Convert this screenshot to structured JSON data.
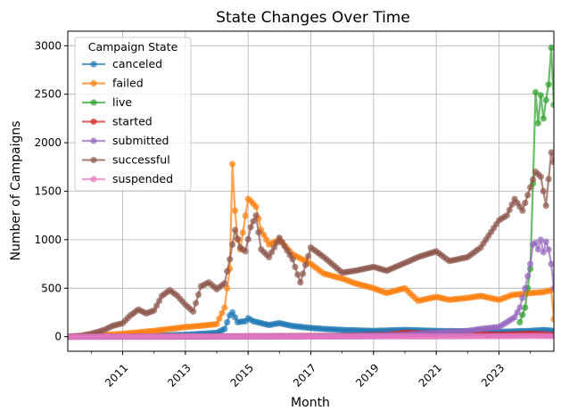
{
  "chart_data": {
    "type": "line",
    "title": "State Changes Over Time",
    "xlabel": "Month",
    "ylabel": "Number of Campaigns",
    "x_range": [
      "2009-04",
      "2024-10"
    ],
    "ylim": [
      -150,
      3150
    ],
    "x_ticks": [
      "2011",
      "2013",
      "2015",
      "2017",
      "2019",
      "2021",
      "2023"
    ],
    "y_ticks": [
      0,
      500,
      1000,
      1500,
      2000,
      2500,
      3000
    ],
    "grid": true,
    "legend": {
      "title": "Campaign State",
      "placement": "top-left"
    },
    "series": [
      {
        "name": "canceled",
        "color": "#1f77b4",
        "points": [
          [
            "2009-04",
            0
          ],
          [
            "2010-01",
            2
          ],
          [
            "2011-01",
            5
          ],
          [
            "2012-01",
            10
          ],
          [
            "2013-01",
            20
          ],
          [
            "2014-01",
            40
          ],
          [
            "2014-04",
            80
          ],
          [
            "2014-06",
            220
          ],
          [
            "2014-07",
            250
          ],
          [
            "2014-08",
            200
          ],
          [
            "2014-09",
            150
          ],
          [
            "2014-12",
            160
          ],
          [
            "2015-01",
            190
          ],
          [
            "2015-03",
            160
          ],
          [
            "2015-06",
            140
          ],
          [
            "2015-09",
            120
          ],
          [
            "2016-01",
            140
          ],
          [
            "2016-06",
            110
          ],
          [
            "2017-01",
            90
          ],
          [
            "2017-06",
            80
          ],
          [
            "2018-01",
            70
          ],
          [
            "2019-01",
            60
          ],
          [
            "2020-01",
            70
          ],
          [
            "2021-01",
            60
          ],
          [
            "2022-01",
            55
          ],
          [
            "2023-01",
            50
          ],
          [
            "2024-01",
            60
          ],
          [
            "2024-06",
            70
          ],
          [
            "2024-10",
            60
          ]
        ]
      },
      {
        "name": "failed",
        "color": "#ff7f0e",
        "points": [
          [
            "2009-04",
            0
          ],
          [
            "2010-01",
            10
          ],
          [
            "2011-01",
            30
          ],
          [
            "2012-01",
            60
          ],
          [
            "2013-01",
            100
          ],
          [
            "2013-06",
            110
          ],
          [
            "2014-01",
            130
          ],
          [
            "2014-04",
            300
          ],
          [
            "2014-06",
            700
          ],
          [
            "2014-07",
            1780
          ],
          [
            "2014-08",
            1300
          ],
          [
            "2014-09",
            1000
          ],
          [
            "2014-10",
            900
          ],
          [
            "2015-01",
            1420
          ],
          [
            "2015-02",
            1400
          ],
          [
            "2015-04",
            1340
          ],
          [
            "2015-06",
            1100
          ],
          [
            "2015-09",
            950
          ],
          [
            "2016-01",
            1000
          ],
          [
            "2016-06",
            850
          ],
          [
            "2017-01",
            750
          ],
          [
            "2017-06",
            650
          ],
          [
            "2018-01",
            600
          ],
          [
            "2018-06",
            550
          ],
          [
            "2019-01",
            500
          ],
          [
            "2019-06",
            450
          ],
          [
            "2020-01",
            500
          ],
          [
            "2020-06",
            370
          ],
          [
            "2021-01",
            410
          ],
          [
            "2021-06",
            380
          ],
          [
            "2022-01",
            400
          ],
          [
            "2022-06",
            420
          ],
          [
            "2023-01",
            380
          ],
          [
            "2023-06",
            430
          ],
          [
            "2024-01",
            450
          ],
          [
            "2024-06",
            460
          ],
          [
            "2024-09",
            480
          ],
          [
            "2024-10",
            180
          ]
        ]
      },
      {
        "name": "live",
        "color": "#2ca02c",
        "points": [
          [
            "2023-09",
            150
          ],
          [
            "2023-11",
            300
          ],
          [
            "2024-01",
            700
          ],
          [
            "2024-02",
            1580
          ],
          [
            "2024-03",
            2520
          ],
          [
            "2024-04",
            2200
          ],
          [
            "2024-05",
            2490
          ],
          [
            "2024-06",
            2250
          ],
          [
            "2024-07",
            2440
          ],
          [
            "2024-08",
            2600
          ],
          [
            "2024-09",
            2980
          ],
          [
            "2024-10",
            2390
          ]
        ]
      },
      {
        "name": "started",
        "color": "#d62728",
        "points": [
          [
            "2009-04",
            0
          ],
          [
            "2012-01",
            2
          ],
          [
            "2015-01",
            5
          ],
          [
            "2018-01",
            8
          ],
          [
            "2019-06",
            20
          ],
          [
            "2020-01",
            40
          ],
          [
            "2021-01",
            30
          ],
          [
            "2022-01",
            25
          ],
          [
            "2023-01",
            20
          ],
          [
            "2024-01",
            30
          ],
          [
            "2024-10",
            20
          ]
        ]
      },
      {
        "name": "submitted",
        "color": "#9467bd",
        "points": [
          [
            "2009-04",
            0
          ],
          [
            "2012-01",
            0
          ],
          [
            "2015-01",
            2
          ],
          [
            "2018-01",
            5
          ],
          [
            "2020-01",
            20
          ],
          [
            "2021-01",
            40
          ],
          [
            "2022-01",
            60
          ],
          [
            "2022-06",
            80
          ],
          [
            "2023-01",
            100
          ],
          [
            "2023-04",
            150
          ],
          [
            "2023-07",
            200
          ],
          [
            "2023-09",
            300
          ],
          [
            "2023-11",
            500
          ],
          [
            "2024-01",
            750
          ],
          [
            "2024-02",
            950
          ],
          [
            "2024-03",
            970
          ],
          [
            "2024-04",
            900
          ],
          [
            "2024-05",
            1000
          ],
          [
            "2024-06",
            870
          ],
          [
            "2024-07",
            980
          ],
          [
            "2024-08",
            900
          ],
          [
            "2024-09",
            750
          ],
          [
            "2024-10",
            500
          ]
        ]
      },
      {
        "name": "successful",
        "color": "#8c564b",
        "points": [
          [
            "2009-04",
            0
          ],
          [
            "2009-09",
            10
          ],
          [
            "2010-01",
            30
          ],
          [
            "2010-06",
            70
          ],
          [
            "2010-09",
            110
          ],
          [
            "2011-01",
            140
          ],
          [
            "2011-04",
            220
          ],
          [
            "2011-07",
            280
          ],
          [
            "2011-10",
            240
          ],
          [
            "2012-01",
            270
          ],
          [
            "2012-04",
            420
          ],
          [
            "2012-07",
            480
          ],
          [
            "2012-10",
            420
          ],
          [
            "2013-01",
            330
          ],
          [
            "2013-04",
            260
          ],
          [
            "2013-07",
            520
          ],
          [
            "2013-10",
            560
          ],
          [
            "2014-01",
            490
          ],
          [
            "2014-04",
            550
          ],
          [
            "2014-06",
            800
          ],
          [
            "2014-08",
            1100
          ],
          [
            "2014-10",
            920
          ],
          [
            "2014-12",
            880
          ],
          [
            "2015-02",
            1130
          ],
          [
            "2015-04",
            1250
          ],
          [
            "2015-06",
            900
          ],
          [
            "2015-09",
            820
          ],
          [
            "2016-01",
            1020
          ],
          [
            "2016-06",
            800
          ],
          [
            "2016-09",
            560
          ],
          [
            "2017-01",
            920
          ],
          [
            "2017-06",
            820
          ],
          [
            "2018-01",
            660
          ],
          [
            "2018-06",
            680
          ],
          [
            "2019-01",
            720
          ],
          [
            "2019-06",
            680
          ],
          [
            "2020-01",
            760
          ],
          [
            "2020-06",
            820
          ],
          [
            "2021-01",
            880
          ],
          [
            "2021-06",
            780
          ],
          [
            "2022-01",
            820
          ],
          [
            "2022-06",
            920
          ],
          [
            "2023-01",
            1200
          ],
          [
            "2023-04",
            1250
          ],
          [
            "2023-07",
            1420
          ],
          [
            "2023-10",
            1300
          ],
          [
            "2024-01",
            1540
          ],
          [
            "2024-03",
            1700
          ],
          [
            "2024-05",
            1650
          ],
          [
            "2024-07",
            1350
          ],
          [
            "2024-09",
            1900
          ],
          [
            "2024-10",
            1800
          ]
        ]
      },
      {
        "name": "suspended",
        "color": "#e377c2",
        "points": [
          [
            "2009-04",
            0
          ],
          [
            "2012-01",
            1
          ],
          [
            "2015-01",
            2
          ],
          [
            "2018-01",
            2
          ],
          [
            "2021-01",
            3
          ],
          [
            "2023-01",
            5
          ],
          [
            "2024-01",
            8
          ],
          [
            "2024-10",
            6
          ]
        ]
      }
    ]
  }
}
